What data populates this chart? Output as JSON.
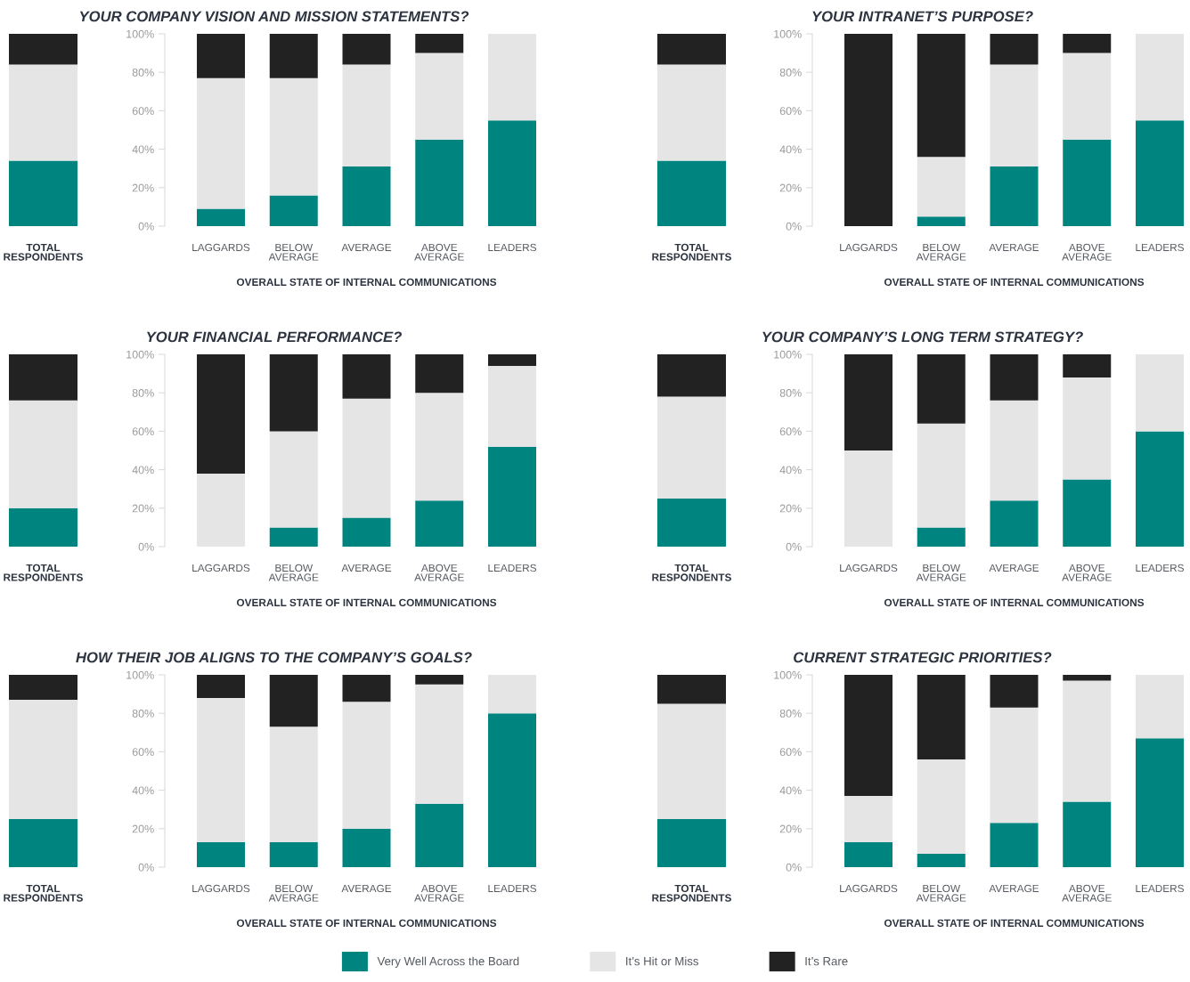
{
  "chart_data": [
    {
      "type": "bar",
      "stacked": true,
      "categories": [
        "TOTAL\nRESPONDENTS"
      ],
      "ylim": [
        0,
        100
      ],
      "tick_labels": "x",
      "legend": "bottom",
      "series": [
        {
          "name": "Very Well Across the Board",
          "color": "#00847f",
          "values": [
            34
          ]
        },
        {
          "name": "It’s Hit or Miss",
          "color": "#e5e5e5",
          "values": [
            50
          ]
        },
        {
          "name": "It’s Rare",
          "color": "#222222",
          "values": [
            16
          ]
        }
      ]
    },
    {
      "type": "bar",
      "stacked": true,
      "title": "YOUR COMPANY VISION AND MISSION STATEMENTS?",
      "xlabel": "OVERALL STATE OF INTERNAL COMMUNICATIONS",
      "categories": [
        "LAGGARDS",
        "BELOW\nAVERAGE",
        "AVERAGE",
        "ABOVE\nAVERAGE",
        "LEADERS"
      ],
      "ylim": [
        0,
        100
      ],
      "yticks": [
        {
          "value": 0,
          "label": "0%"
        },
        {
          "value": 20,
          "label": "20%"
        },
        {
          "value": 40,
          "label": "40%"
        },
        {
          "value": 60,
          "label": "60%"
        },
        {
          "value": 80,
          "label": "80%"
        },
        {
          "value": 100,
          "label": "100%"
        }
      ],
      "series": [
        {
          "color": "#00847f",
          "values": [
            9,
            16,
            31,
            45,
            55
          ]
        },
        {
          "color": "#e5e5e5",
          "values": [
            68,
            61,
            53,
            45,
            45
          ]
        },
        {
          "color": "#222222",
          "values": [
            23,
            23,
            16,
            10,
            0
          ]
        }
      ]
    },
    {
      "type": "bar",
      "stacked": true,
      "categories": [
        "TOTAL\nRESPONDENTS"
      ],
      "ylim": [
        0,
        100
      ],
      "tick_labels": "x",
      "series": [
        {
          "color": "#00847f",
          "values": [
            34
          ]
        },
        {
          "color": "#e5e5e5",
          "values": [
            50
          ]
        },
        {
          "color": "#222222",
          "values": [
            16
          ]
        }
      ]
    },
    {
      "type": "bar",
      "stacked": true,
      "title": "YOUR INTRANET’S PURPOSE?",
      "xlabel": "OVERALL STATE OF INTERNAL COMMUNICATIONS",
      "categories": [
        "LAGGARDS",
        "BELOW\nAVERAGE",
        "AVERAGE",
        "ABOVE\nAVERAGE",
        "LEADERS"
      ],
      "ylim": [
        0,
        100
      ],
      "yticks": [
        {
          "value": 0,
          "label": "0%"
        },
        {
          "value": 20,
          "label": "20%"
        },
        {
          "value": 40,
          "label": "40%"
        },
        {
          "value": 60,
          "label": "60%"
        },
        {
          "value": 80,
          "label": "80%"
        },
        {
          "value": 100,
          "label": "100%"
        }
      ],
      "series": [
        {
          "color": "#00847f",
          "values": [
            0,
            5,
            31,
            45,
            55
          ]
        },
        {
          "color": "#e5e5e5",
          "values": [
            0,
            31,
            53,
            45,
            45
          ]
        },
        {
          "color": "#222222",
          "values": [
            100,
            64,
            16,
            10,
            0
          ]
        }
      ]
    },
    {
      "type": "bar",
      "stacked": true,
      "categories": [
        "TOTAL\nRESPONDENTS"
      ],
      "ylim": [
        0,
        100
      ],
      "tick_labels": "x",
      "series": [
        {
          "color": "#00847f",
          "values": [
            20
          ]
        },
        {
          "color": "#e5e5e5",
          "values": [
            56
          ]
        },
        {
          "color": "#222222",
          "values": [
            24
          ]
        }
      ]
    },
    {
      "type": "bar",
      "stacked": true,
      "title": "YOUR FINANCIAL PERFORMANCE?",
      "xlabel": "OVERALL STATE OF INTERNAL COMMUNICATIONS",
      "categories": [
        "LAGGARDS",
        "BELOW\nAVERAGE",
        "AVERAGE",
        "ABOVE\nAVERAGE",
        "LEADERS"
      ],
      "ylim": [
        0,
        100
      ],
      "yticks": [
        {
          "value": 0,
          "label": "0%"
        },
        {
          "value": 20,
          "label": "20%"
        },
        {
          "value": 40,
          "label": "40%"
        },
        {
          "value": 60,
          "label": "60%"
        },
        {
          "value": 80,
          "label": "80%"
        },
        {
          "value": 100,
          "label": "100%"
        }
      ],
      "series": [
        {
          "color": "#00847f",
          "values": [
            0,
            10,
            15,
            24,
            52
          ]
        },
        {
          "color": "#e5e5e5",
          "values": [
            38,
            50,
            62,
            56,
            42
          ]
        },
        {
          "color": "#222222",
          "values": [
            62,
            40,
            23,
            20,
            6
          ]
        }
      ]
    },
    {
      "type": "bar",
      "stacked": true,
      "categories": [
        "TOTAL\nRESPONDENTS"
      ],
      "ylim": [
        0,
        100
      ],
      "tick_labels": "x",
      "series": [
        {
          "color": "#00847f",
          "values": [
            25
          ]
        },
        {
          "color": "#e5e5e5",
          "values": [
            53
          ]
        },
        {
          "color": "#222222",
          "values": [
            22
          ]
        }
      ]
    },
    {
      "type": "bar",
      "stacked": true,
      "title": "YOUR COMPANY’S LONG TERM STRATEGY?",
      "xlabel": "OVERALL STATE OF INTERNAL COMMUNICATIONS",
      "categories": [
        "LAGGARDS",
        "BELOW\nAVERAGE",
        "AVERAGE",
        "ABOVE\nAVERAGE",
        "LEADERS"
      ],
      "ylim": [
        0,
        100
      ],
      "yticks": [
        {
          "value": 0,
          "label": "0%"
        },
        {
          "value": 20,
          "label": "20%"
        },
        {
          "value": 40,
          "label": "40%"
        },
        {
          "value": 60,
          "label": "60%"
        },
        {
          "value": 80,
          "label": "80%"
        },
        {
          "value": 100,
          "label": "100%"
        }
      ],
      "series": [
        {
          "color": "#00847f",
          "values": [
            0,
            10,
            24,
            35,
            60
          ]
        },
        {
          "color": "#e5e5e5",
          "values": [
            50,
            54,
            52,
            53,
            40
          ]
        },
        {
          "color": "#222222",
          "values": [
            50,
            36,
            24,
            12,
            0
          ]
        }
      ]
    },
    {
      "type": "bar",
      "stacked": true,
      "categories": [
        "TOTAL\nRESPONDENTS"
      ],
      "ylim": [
        0,
        100
      ],
      "tick_labels": "x",
      "series": [
        {
          "color": "#00847f",
          "values": [
            25
          ]
        },
        {
          "color": "#e5e5e5",
          "values": [
            62
          ]
        },
        {
          "color": "#222222",
          "values": [
            13
          ]
        }
      ]
    },
    {
      "type": "bar",
      "stacked": true,
      "title": "HOW THEIR JOB ALIGNS TO THE COMPANY’S GOALS?",
      "xlabel": "OVERALL STATE OF INTERNAL COMMUNICATIONS",
      "categories": [
        "LAGGARDS",
        "BELOW\nAVERAGE",
        "AVERAGE",
        "ABOVE\nAVERAGE",
        "LEADERS"
      ],
      "ylim": [
        0,
        100
      ],
      "yticks": [
        {
          "value": 0,
          "label": "0%"
        },
        {
          "value": 20,
          "label": "20%"
        },
        {
          "value": 40,
          "label": "40%"
        },
        {
          "value": 60,
          "label": "60%"
        },
        {
          "value": 80,
          "label": "80%"
        },
        {
          "value": 100,
          "label": "100%"
        }
      ],
      "series": [
        {
          "color": "#00847f",
          "values": [
            13,
            13,
            20,
            33,
            80
          ]
        },
        {
          "color": "#e5e5e5",
          "values": [
            75,
            60,
            66,
            62,
            20
          ]
        },
        {
          "color": "#222222",
          "values": [
            12,
            27,
            14,
            5,
            0
          ]
        }
      ]
    },
    {
      "type": "bar",
      "stacked": true,
      "categories": [
        "TOTAL\nRESPONDENTS"
      ],
      "ylim": [
        0,
        100
      ],
      "tick_labels": "x",
      "series": [
        {
          "color": "#00847f",
          "values": [
            25
          ]
        },
        {
          "color": "#e5e5e5",
          "values": [
            60
          ]
        },
        {
          "color": "#222222",
          "values": [
            15
          ]
        }
      ]
    },
    {
      "type": "bar",
      "stacked": true,
      "title": "CURRENT STRATEGIC PRIORITIES?",
      "xlabel": "OVERALL STATE OF INTERNAL COMMUNICATIONS",
      "categories": [
        "LAGGARDS",
        "BELOW\nAVERAGE",
        "AVERAGE",
        "ABOVE\nAVERAGE",
        "LEADERS"
      ],
      "ylim": [
        0,
        100
      ],
      "yticks": [
        {
          "value": 0,
          "label": "0%"
        },
        {
          "value": 20,
          "label": "20%"
        },
        {
          "value": 40,
          "label": "40%"
        },
        {
          "value": 60,
          "label": "60%"
        },
        {
          "value": 80,
          "label": "80%"
        },
        {
          "value": 100,
          "label": "100%"
        }
      ],
      "series": [
        {
          "color": "#00847f",
          "values": [
            13,
            7,
            23,
            34,
            67
          ]
        },
        {
          "color": "#e5e5e5",
          "values": [
            24,
            49,
            60,
            63,
            33
          ]
        },
        {
          "color": "#222222",
          "values": [
            63,
            44,
            17,
            3,
            0
          ]
        }
      ]
    }
  ]
}
